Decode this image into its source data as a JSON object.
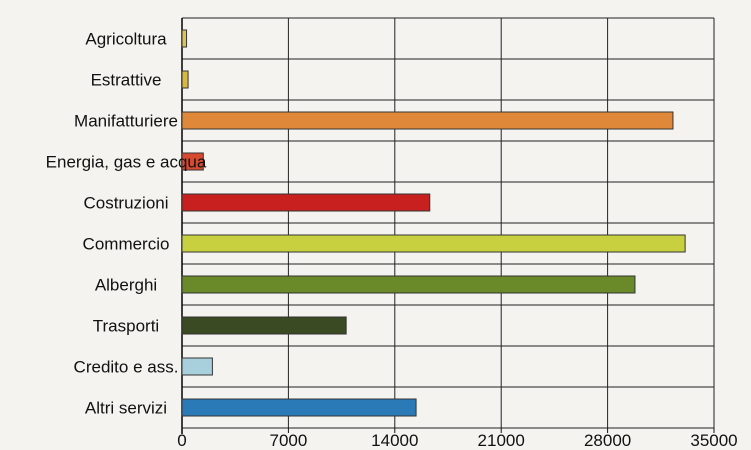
{
  "chart_data": {
    "type": "bar",
    "orientation": "horizontal",
    "categories": [
      "Agricoltura",
      "Estrattive",
      "Manifatturiere",
      "Energia, gas e acqua",
      "Costruzioni",
      "Commercio",
      "Alberghi",
      "Trasporti",
      "Credito e ass.",
      "Altri servizi"
    ],
    "values": [
      300,
      400,
      32300,
      1400,
      16300,
      33100,
      29800,
      10800,
      2000,
      15400
    ],
    "colors": [
      "#d8c25a",
      "#d8b840",
      "#e0883a",
      "#d84a30",
      "#c8201e",
      "#c8d040",
      "#6a8a2a",
      "#3a4a22",
      "#a8d0dc",
      "#2a7ab8"
    ],
    "xticks": [
      "0",
      "7000",
      "14000",
      "21000",
      "28000",
      "35000"
    ],
    "xlim": [
      0,
      35000
    ],
    "grid": true
  }
}
